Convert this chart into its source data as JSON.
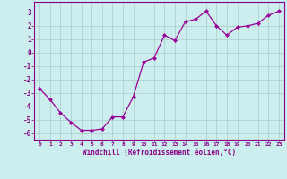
{
  "x": [
    0,
    1,
    2,
    3,
    4,
    5,
    6,
    7,
    8,
    9,
    10,
    11,
    12,
    13,
    14,
    15,
    16,
    17,
    18,
    19,
    20,
    21,
    22,
    23
  ],
  "y": [
    -2.7,
    -3.5,
    -4.5,
    -5.2,
    -5.8,
    -5.8,
    -5.7,
    -4.8,
    -4.8,
    -3.3,
    -0.7,
    -0.4,
    1.3,
    0.9,
    2.3,
    2.5,
    3.1,
    2.0,
    1.3,
    1.9,
    2.0,
    2.2,
    2.8,
    3.1
  ],
  "line_color": "#990099",
  "marker": "D",
  "markersize": 2.0,
  "linewidth": 0.9,
  "background_color": "#cceeee",
  "grid_color": "#aacccc",
  "xlabel": "Windchill (Refroidissement éolien,°C)",
  "xlabel_color": "#880088",
  "tick_color": "#880088",
  "xlim": [
    -0.5,
    23.5
  ],
  "ylim": [
    -6.5,
    3.8
  ],
  "yticks": [
    -6,
    -5,
    -4,
    -3,
    -2,
    -1,
    0,
    1,
    2,
    3
  ],
  "xticks": [
    0,
    1,
    2,
    3,
    4,
    5,
    6,
    7,
    8,
    9,
    10,
    11,
    12,
    13,
    14,
    15,
    16,
    17,
    18,
    19,
    20,
    21,
    22,
    23
  ]
}
